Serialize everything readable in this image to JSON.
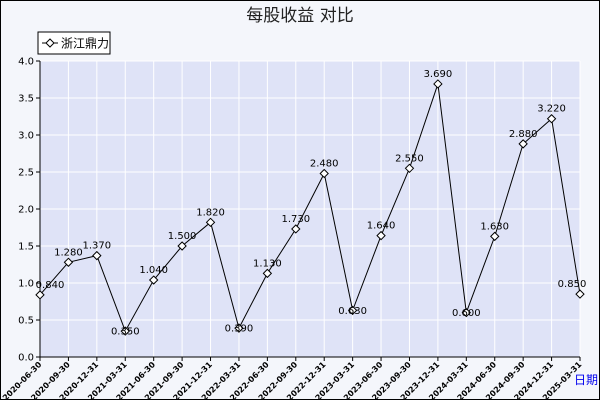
{
  "chart_data": {
    "type": "line",
    "title": "每股收益  对比",
    "legend": "浙江鼎力",
    "legend_placement": "top-left",
    "grid": true,
    "ylim": [
      0,
      4.0
    ],
    "yticks": [
      "0.0",
      "0.5",
      "1.0",
      "1.5",
      "2.0",
      "2.5",
      "3.0",
      "3.5",
      "4.0"
    ],
    "x_link_label": "日期",
    "categories": [
      "2020-06-30",
      "2020-09-30",
      "2020-12-31",
      "2021-03-31",
      "2021-06-30",
      "2021-09-30",
      "2021-12-31",
      "2022-03-31",
      "2022-06-30",
      "2022-09-30",
      "2022-12-31",
      "2023-03-31",
      "2023-06-30",
      "2023-09-30",
      "2023-12-31",
      "2024-03-31",
      "2024-06-30",
      "2024-09-30",
      "2024-12-31",
      "2025-03-31"
    ],
    "series": [
      {
        "name": "浙江鼎力",
        "values": [
          0.84,
          1.28,
          1.37,
          0.35,
          1.04,
          1.5,
          1.82,
          0.39,
          1.13,
          1.73,
          2.48,
          0.63,
          1.64,
          2.55,
          3.69,
          0.6,
          1.63,
          2.88,
          3.22,
          0.85
        ],
        "labels": [
          "0.840",
          "1.280",
          "1.370",
          "0.350",
          "1.040",
          "1.500",
          "1.820",
          "0.390",
          "1.130",
          "1.730",
          "2.480",
          "0.630",
          "1.640",
          "2.550",
          "3.690",
          "0.600",
          "1.630",
          "2.880",
          "3.220",
          "0.850"
        ]
      }
    ],
    "colors": {
      "plot_bg": "#dfe3f7",
      "grid": "#ffffff",
      "line": "#000000",
      "page_bg": "#f4f6fb"
    }
  }
}
